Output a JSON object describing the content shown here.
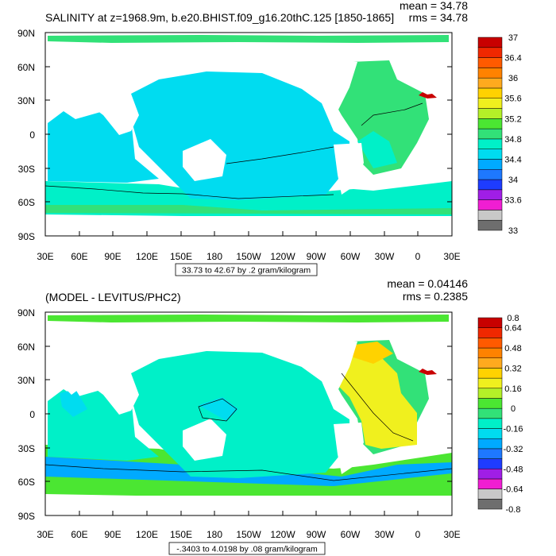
{
  "colors": {
    "land": "#ffffff",
    "frame": "#000000",
    "palette": [
      "#6e6e6e",
      "#c8c8c8",
      "#f01ed2",
      "#a01ee6",
      "#1e3cff",
      "#1e78ff",
      "#00aaff",
      "#00dcf0",
      "#00f0c8",
      "#32e178",
      "#4be632",
      "#b4f028",
      "#f0f01e",
      "#ffd200",
      "#ffaa1e",
      "#ff8200",
      "#ff5a00",
      "#f02800",
      "#c80000"
    ]
  },
  "chart_data": [
    {
      "type": "heatmap",
      "title": "SALINITY at z=1968.9m, b.e20.BHIST.f09_g16.20thC.125 [1850-1865]",
      "stats": {
        "mean": "mean = 34.78",
        "rms": "rms = 34.78"
      },
      "x_ticks": [
        "30E",
        "60E",
        "90E",
        "120E",
        "150E",
        "180",
        "150W",
        "120W",
        "90W",
        "60W",
        "30W",
        "0",
        "30E"
      ],
      "y_ticks": [
        "90N",
        "60N",
        "30N",
        "0",
        "30S",
        "60S",
        "90S"
      ],
      "contour_info": "33.73 to 42.67 by .2 gram/kilogram",
      "colorbar_labels": [
        "37",
        "36.4",
        "36",
        "35.6",
        "35.2",
        "34.8",
        "34.4",
        "34",
        "33.6",
        "33"
      ],
      "colorbar_levels": [
        33,
        33.2,
        33.4,
        33.6,
        33.8,
        34,
        34.2,
        34.4,
        34.6,
        34.8,
        35,
        35.2,
        35.4,
        35.6,
        35.8,
        36,
        36.2,
        36.4,
        36.8,
        37
      ]
    },
    {
      "type": "heatmap",
      "title": "(MODEL - LEVITUS/PHC2)",
      "stats": {
        "mean": "mean = 0.04146",
        "rms": "rms = 0.2385"
      },
      "x_ticks": [
        "30E",
        "60E",
        "90E",
        "120E",
        "150E",
        "180",
        "150W",
        "120W",
        "90W",
        "60W",
        "30W",
        "0",
        "30E"
      ],
      "y_ticks": [
        "90N",
        "60N",
        "30N",
        "0",
        "30S",
        "60S",
        "90S"
      ],
      "contour_info": "-.3403 to 4.0198 by .08 gram/kilogram",
      "colorbar_labels": [
        "0.8",
        "0.64",
        "0.48",
        "0.32",
        "0.16",
        "0",
        "-0.16",
        "-0.32",
        "-0.48",
        "-0.64",
        "-0.8"
      ],
      "colorbar_levels": [
        -0.8,
        -0.72,
        -0.64,
        -0.56,
        -0.48,
        -0.4,
        -0.32,
        -0.24,
        -0.16,
        -0.08,
        0,
        0.08,
        0.16,
        0.24,
        0.32,
        0.4,
        0.48,
        0.56,
        0.64,
        0.8
      ]
    }
  ]
}
